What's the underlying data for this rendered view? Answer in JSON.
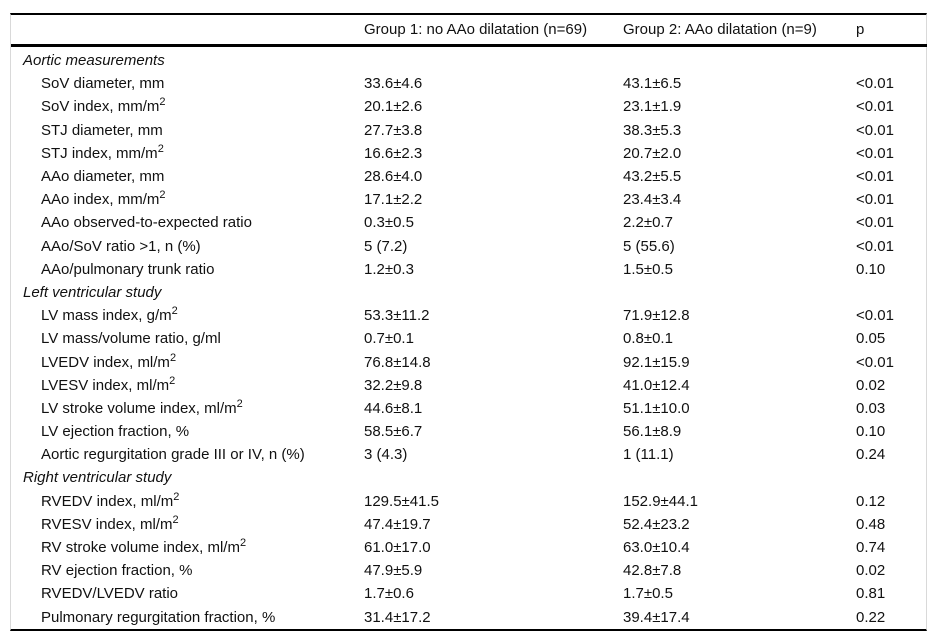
{
  "table": {
    "header": {
      "col_label": "",
      "col_group1": "Group 1: no AAo dilatation (n=69)",
      "col_group2": "Group 2: AAo dilatation (n=9)",
      "col_p": "p"
    },
    "sections": [
      {
        "title": "Aortic measurements",
        "rows": [
          {
            "label": "SoV diameter, mm",
            "group1": "33.6±4.6",
            "group2": "43.1±6.5",
            "p": "<0.01"
          },
          {
            "label": "SoV index, mm/m²",
            "group1": "20.1±2.6",
            "group2": "23.1±1.9",
            "p": "<0.01"
          },
          {
            "label": "STJ diameter, mm",
            "group1": "27.7±3.8",
            "group2": "38.3±5.3",
            "p": "<0.01"
          },
          {
            "label": "STJ index, mm/m²",
            "group1": "16.6±2.3",
            "group2": "20.7±2.0",
            "p": "<0.01"
          },
          {
            "label": "AAo diameter, mm",
            "group1": "28.6±4.0",
            "group2": "43.2±5.5",
            "p": "<0.01"
          },
          {
            "label": "AAo index, mm/m²",
            "group1": "17.1±2.2",
            "group2": "23.4±3.4",
            "p": "<0.01"
          },
          {
            "label": "AAo observed-to-expected ratio",
            "group1": "0.3±0.5",
            "group2": "2.2±0.7",
            "p": "<0.01"
          },
          {
            "label": "AAo/SoV ratio >1, n (%)",
            "group1": "5 (7.2)",
            "group2": "5 (55.6)",
            "p": "<0.01"
          },
          {
            "label": "AAo/pulmonary trunk ratio",
            "group1": "1.2±0.3",
            "group2": "1.5±0.5",
            "p": "0.10"
          }
        ]
      },
      {
        "title": "Left ventricular study",
        "rows": [
          {
            "label": "LV mass index, g/m²",
            "group1": "53.3±11.2",
            "group2": "71.9±12.8",
            "p": "<0.01"
          },
          {
            "label": "LV mass/volume ratio, g/ml",
            "group1": "0.7±0.1",
            "group2": "0.8±0.1",
            "p": "0.05"
          },
          {
            "label": "LVEDV index, ml/m²",
            "group1": "76.8±14.8",
            "group2": "92.1±15.9",
            "p": "<0.01"
          },
          {
            "label": "LVESV index, ml/m²",
            "group1": "32.2±9.8",
            "group2": "41.0±12.4",
            "p": "0.02"
          },
          {
            "label": "LV stroke volume index, ml/m²",
            "group1": "44.6±8.1",
            "group2": "51.1±10.0",
            "p": "0.03"
          },
          {
            "label": "LV ejection fraction, %",
            "group1": "58.5±6.7",
            "group2": "56.1±8.9",
            "p": "0.10"
          },
          {
            "label": "Aortic regurgitation grade III or IV, n (%)",
            "group1": "3 (4.3)",
            "group2": "1 (11.1)",
            "p": "0.24"
          }
        ]
      },
      {
        "title": "Right ventricular study",
        "rows": [
          {
            "label": "RVEDV index, ml/m²",
            "group1": "129.5±41.5",
            "group2": "152.9±44.1",
            "p": "0.12"
          },
          {
            "label": "RVESV index, ml/m²",
            "group1": "47.4±19.7",
            "group2": "52.4±23.2",
            "p": "0.48"
          },
          {
            "label": "RV stroke volume index, ml/m²",
            "group1": "61.0±17.0",
            "group2": "63.0±10.4",
            "p": "0.74"
          },
          {
            "label": "RV ejection fraction, %",
            "group1": "47.9±5.9",
            "group2": "42.8±7.8",
            "p": "0.02"
          },
          {
            "label": "RVEDV/LVEDV ratio",
            "group1": "1.7±0.6",
            "group2": "1.7±0.5",
            "p": "0.81"
          },
          {
            "label": "Pulmonary regurgitation fraction, %",
            "group1": "31.4±17.2",
            "group2": "39.4±17.4",
            "p": "0.22"
          }
        ]
      }
    ]
  }
}
